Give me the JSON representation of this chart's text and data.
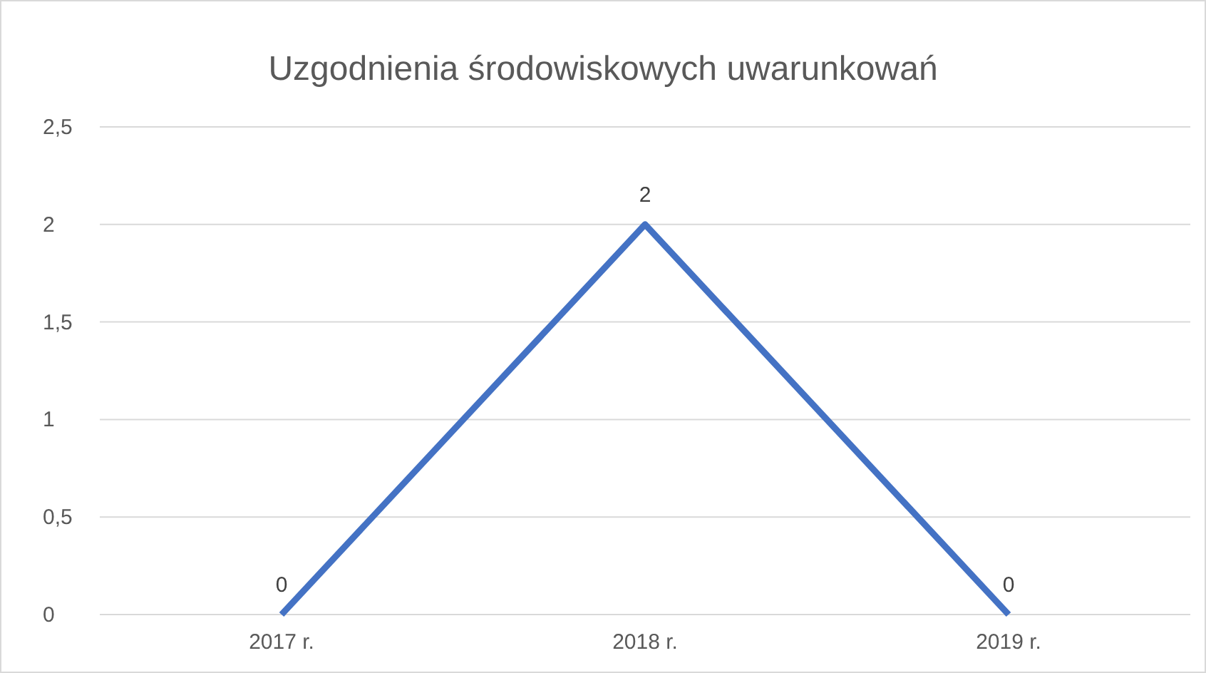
{
  "chart_data": {
    "type": "line",
    "title": "Uzgodnienia środowiskowych uwarunkowań",
    "categories": [
      "2017 r.",
      "2018 r.",
      "2019 r."
    ],
    "series": [
      {
        "color": "#4472c4",
        "values": [
          0,
          2,
          0
        ]
      }
    ],
    "ylim": [
      0,
      2.5
    ],
    "yticks": [
      0,
      {
        "value": 0.5,
        "label": "0,5"
      },
      1,
      {
        "value": 1.5,
        "label": "1,5"
      },
      2,
      {
        "value": 2.5,
        "label": "2,5"
      }
    ],
    "grid": "y",
    "data_labels": true,
    "marker": "none"
  }
}
